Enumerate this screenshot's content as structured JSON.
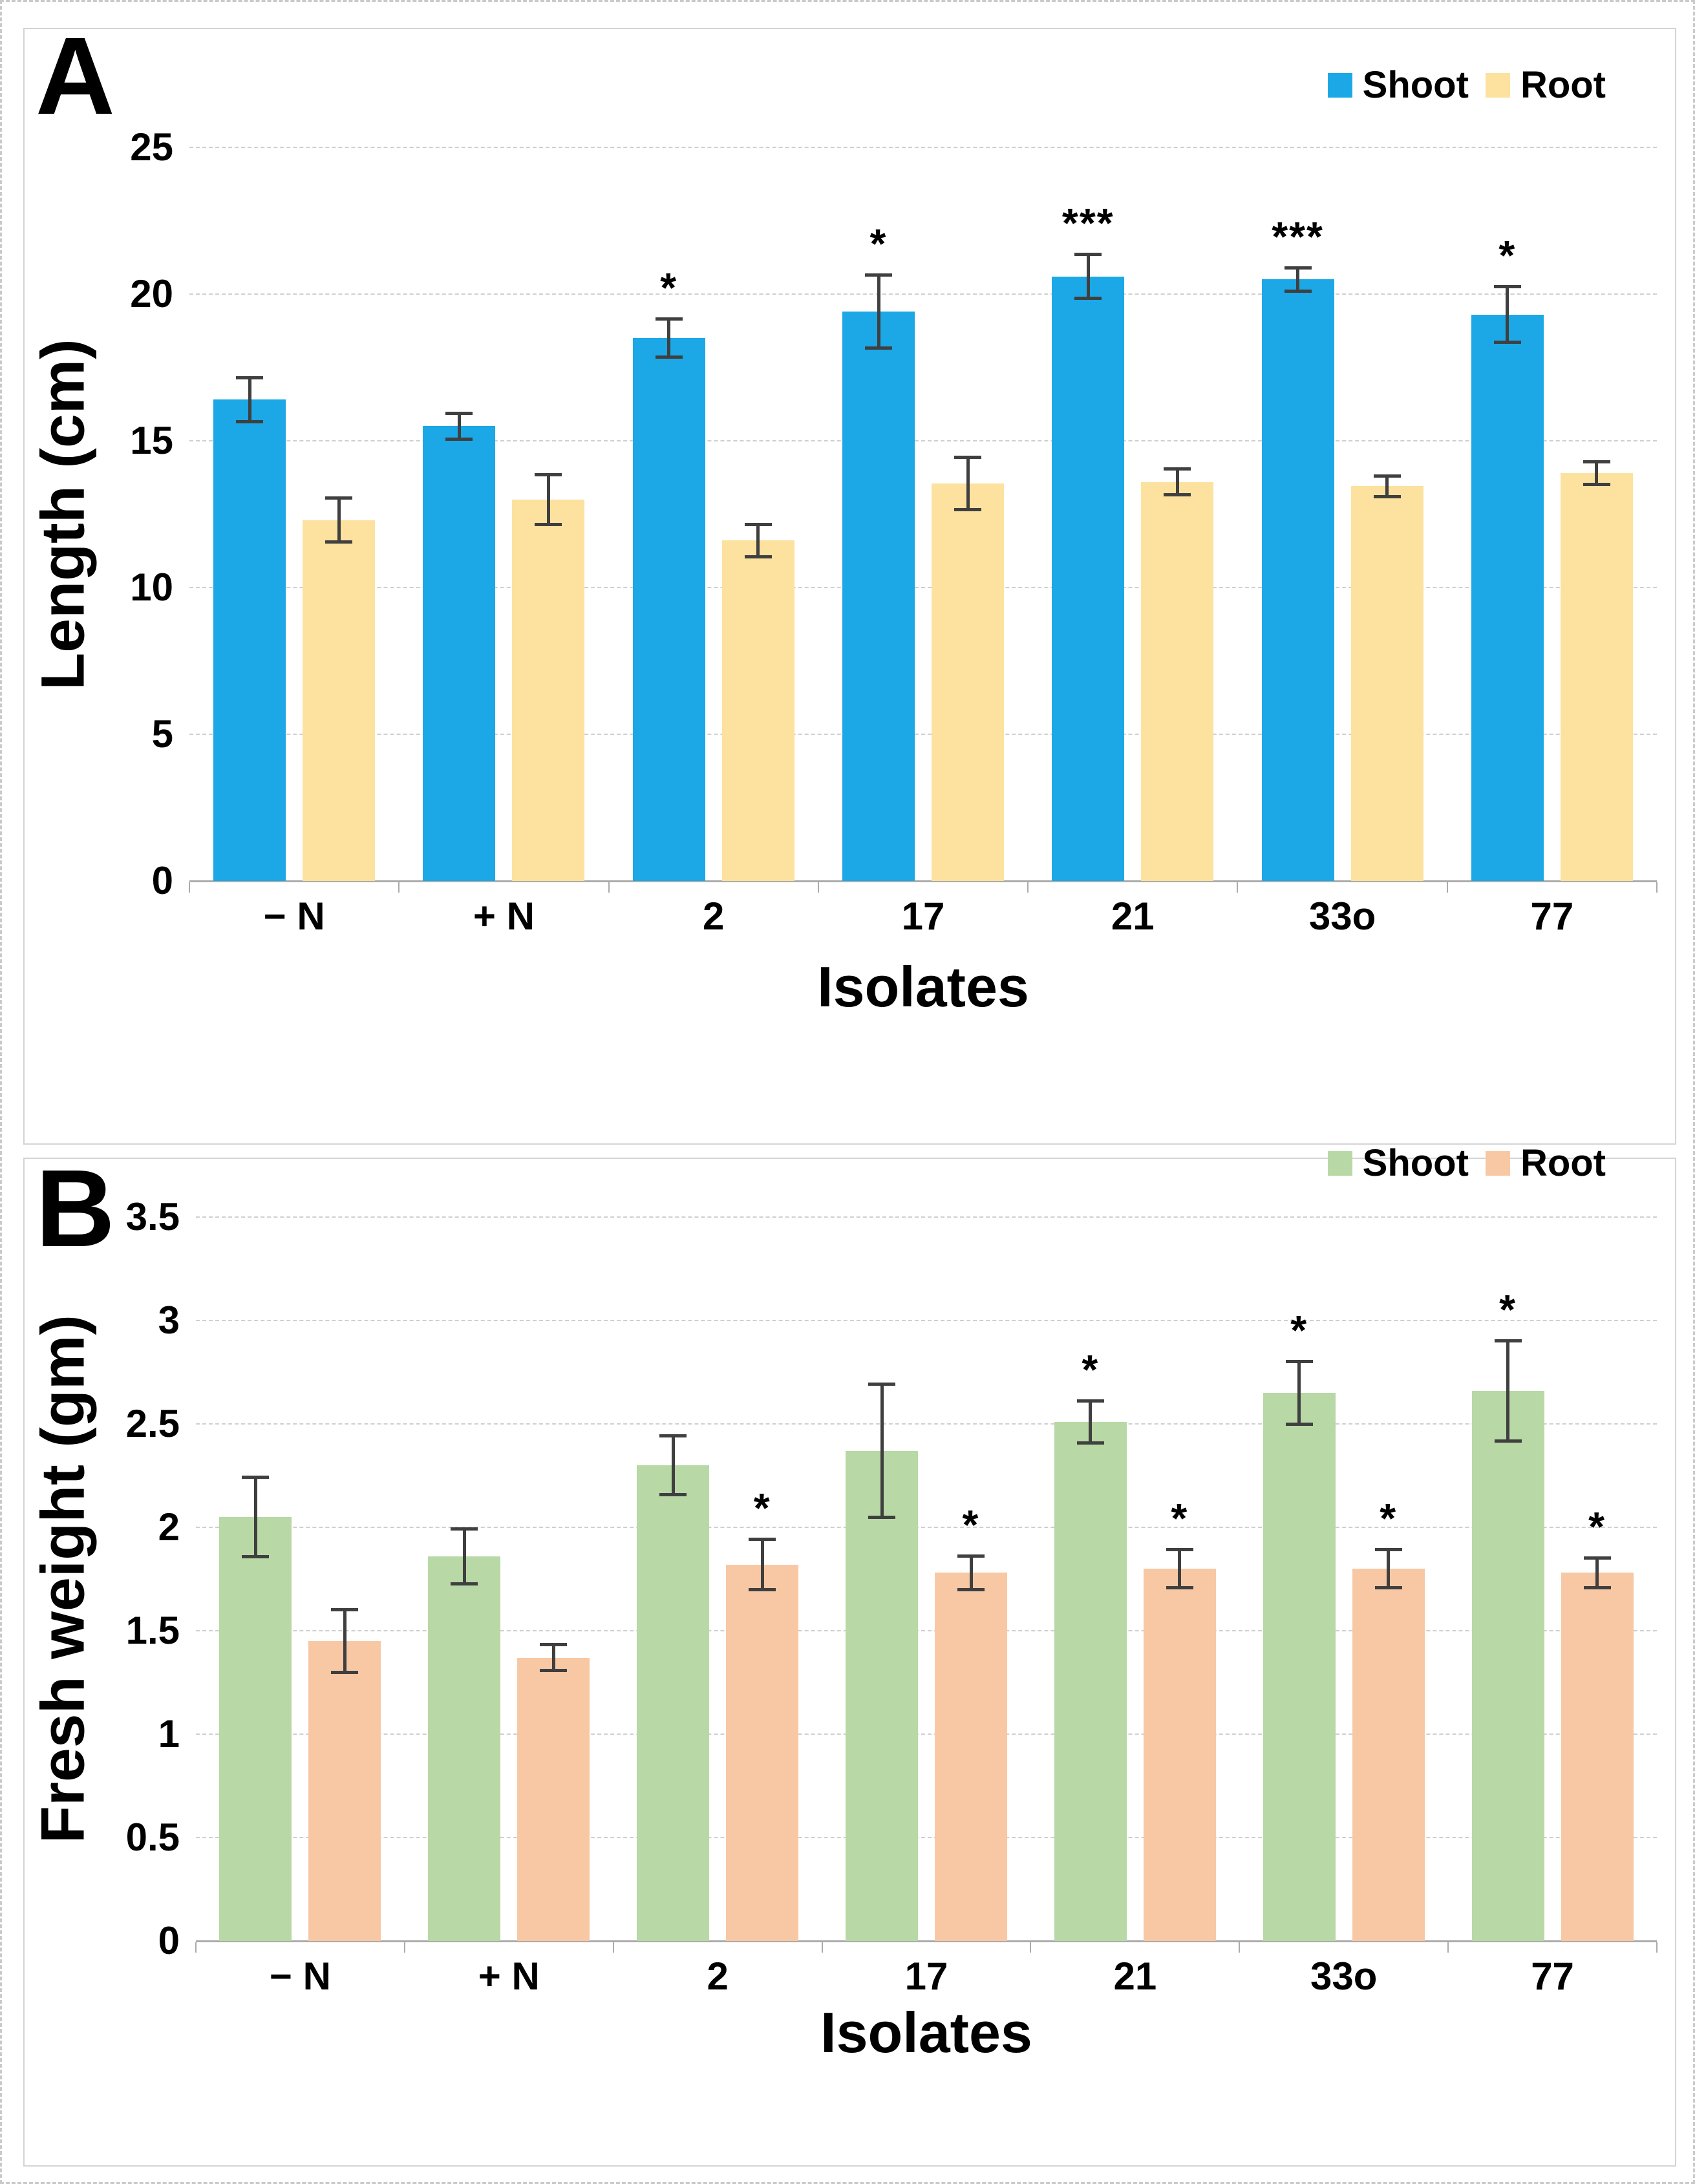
{
  "figure": {
    "background": "#ffffff",
    "error_bar_color": "#3f3f3f",
    "gridline_color": "#cfcfcf",
    "axis_color": "#ababab"
  },
  "chart_data": [
    {
      "type": "bar",
      "panel_label": "A",
      "title": "",
      "xlabel": "Isolates",
      "ylabel": "Length (cm)",
      "ylim": [
        0,
        25
      ],
      "ytick_step": 5,
      "ytick_labels": [
        "0",
        "5",
        "10",
        "15",
        "20",
        "25"
      ],
      "categories": [
        "− N",
        "+ N",
        "2",
        "17",
        "21",
        "33o",
        "77"
      ],
      "grid": "horizontal-dashed",
      "legend_position": "top-right",
      "series": [
        {
          "name": "Shoot",
          "color": "#1CA8E6",
          "values": [
            16.4,
            15.5,
            18.5,
            19.4,
            20.6,
            20.5,
            19.3
          ],
          "errors": [
            0.8,
            0.5,
            0.7,
            1.3,
            0.8,
            0.45,
            1.0
          ],
          "significance": [
            "",
            "",
            "*",
            "*",
            "***",
            "***",
            "*"
          ]
        },
        {
          "name": "Root",
          "color": "#FCE29E",
          "values": [
            12.3,
            13.0,
            11.6,
            13.55,
            13.6,
            13.45,
            13.9
          ],
          "errors": [
            0.8,
            0.9,
            0.6,
            0.95,
            0.5,
            0.4,
            0.45
          ],
          "significance": [
            "",
            "",
            "",
            "",
            "",
            "",
            ""
          ]
        }
      ]
    },
    {
      "type": "bar",
      "panel_label": "B",
      "title": "",
      "xlabel": "Isolates",
      "ylabel": "Fresh weight (gm)",
      "ylim": [
        0,
        3.5
      ],
      "ytick_step": 0.5,
      "ytick_labels": [
        "0",
        "0.5",
        "1",
        "1.5",
        "2",
        "2.5",
        "3",
        "3.5"
      ],
      "categories": [
        "− N",
        "+ N",
        "2",
        "17",
        "21",
        "33o",
        "77"
      ],
      "grid": "horizontal-dashed",
      "legend_position": "top-right",
      "series": [
        {
          "name": "Shoot",
          "color": "#B8D8A6",
          "values": [
            2.05,
            1.86,
            2.3,
            2.37,
            2.51,
            2.65,
            2.66
          ],
          "errors": [
            0.2,
            0.14,
            0.15,
            0.33,
            0.11,
            0.16,
            0.25
          ],
          "significance": [
            "",
            "",
            "",
            "",
            "*",
            "*",
            "*"
          ]
        },
        {
          "name": "Root",
          "color": "#F8C8A4",
          "values": [
            1.45,
            1.37,
            1.82,
            1.78,
            1.8,
            1.8,
            1.78
          ],
          "errors": [
            0.16,
            0.07,
            0.13,
            0.09,
            0.1,
            0.1,
            0.08
          ],
          "significance": [
            "",
            "",
            "*",
            "*",
            "*",
            "*",
            "*"
          ]
        }
      ]
    }
  ]
}
